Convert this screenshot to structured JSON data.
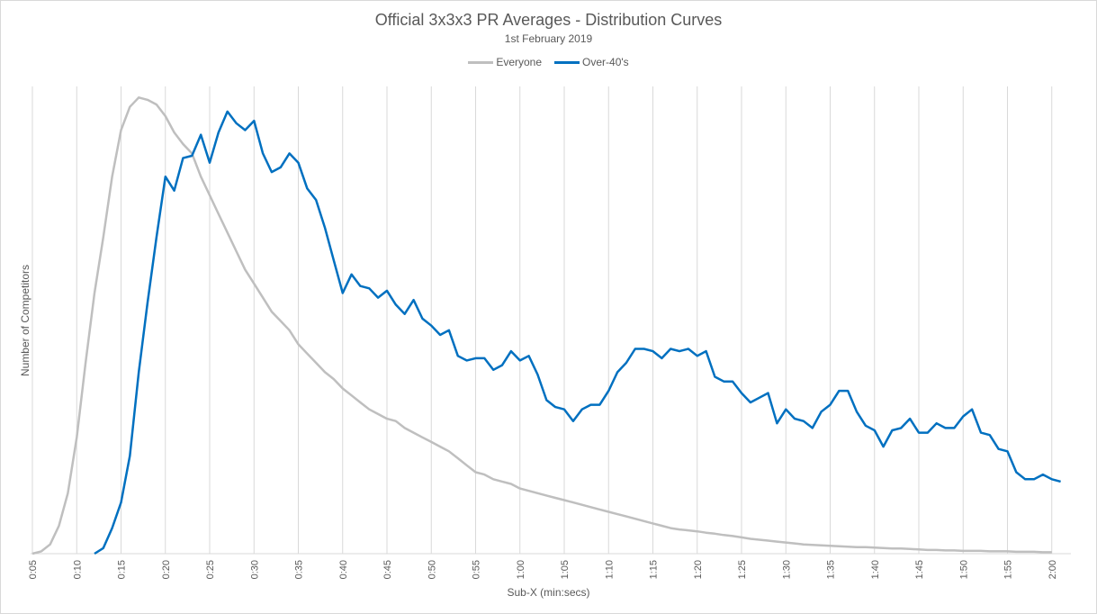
{
  "chart_data": {
    "type": "line",
    "title": "Official 3x3x3 PR Averages - Distribution Curves",
    "subtitle": "1st February 2019",
    "xlabel": "Sub-X (min:secs)",
    "ylabel": "Number  of Competitors",
    "legend_position": "top",
    "grid": {
      "vertical": true,
      "horizontal": false
    },
    "x_unit": "seconds",
    "tick_labels": [
      "0:05",
      "0:10",
      "0:15",
      "0:20",
      "0:25",
      "0:30",
      "0:35",
      "0:40",
      "0:45",
      "0:50",
      "0:55",
      "1:00",
      "1:05",
      "1:10",
      "1:15",
      "1:20",
      "1:25",
      "1:30",
      "1:35",
      "1:40",
      "1:45",
      "1:50",
      "1:55",
      "2:00"
    ],
    "ylim": [
      0,
      100
    ],
    "series": [
      {
        "name": "Everyone",
        "color": "#bfbfbf",
        "x_start": 5,
        "values": [
          0,
          0.5,
          2,
          6,
          13,
          25,
          41,
          56,
          68,
          81,
          91,
          96,
          98,
          97.5,
          96.5,
          94,
          90.5,
          88,
          86,
          81,
          77,
          73,
          69,
          65,
          61,
          58,
          55,
          52,
          50,
          48,
          45,
          43,
          41,
          39,
          37.5,
          35.5,
          34,
          32.5,
          31,
          30,
          29,
          28.5,
          27,
          26,
          25,
          24,
          23,
          22,
          20.5,
          19,
          17.5,
          17,
          16,
          15.5,
          15,
          14,
          13.5,
          13,
          12.5,
          12,
          11.5,
          11,
          10.5,
          10,
          9.5,
          9,
          8.5,
          8,
          7.5,
          7,
          6.5,
          6,
          5.5,
          5.2,
          5,
          4.8,
          4.5,
          4.3,
          4,
          3.8,
          3.5,
          3.2,
          3,
          2.8,
          2.6,
          2.4,
          2.2,
          2,
          1.9,
          1.8,
          1.7,
          1.6,
          1.5,
          1.4,
          1.4,
          1.3,
          1.2,
          1.1,
          1.1,
          1,
          0.9,
          0.8,
          0.8,
          0.7,
          0.7,
          0.6,
          0.6,
          0.6,
          0.5,
          0.5,
          0.5,
          0.4,
          0.4,
          0.4,
          0.3,
          0.3
        ]
      },
      {
        "name": "Over-40's",
        "color": "#0070c0",
        "x_start": 12,
        "values": [
          0,
          1.2,
          5.5,
          11,
          21,
          39,
          54,
          68,
          81,
          78,
          85,
          85.5,
          90,
          84,
          90.5,
          95,
          92.5,
          91,
          93,
          86,
          82,
          83,
          86,
          84,
          78.5,
          76,
          70,
          63,
          56,
          60,
          57.5,
          57,
          55,
          56.5,
          53.5,
          51.5,
          54.5,
          50.5,
          49,
          47,
          48,
          42.5,
          41.5,
          42,
          42,
          39.5,
          40.5,
          43.5,
          41.5,
          42.5,
          38.5,
          33,
          31.5,
          31,
          28.5,
          31,
          32,
          32,
          35,
          39,
          41,
          44,
          44,
          43.5,
          42,
          44,
          43.5,
          44,
          42.5,
          43.5,
          38,
          37,
          37,
          34.5,
          32.5,
          33.5,
          34.5,
          28,
          31,
          29,
          28.5,
          27,
          30.5,
          32,
          35,
          35,
          30.5,
          27.5,
          26.5,
          23,
          26.5,
          27,
          29,
          26,
          26,
          28,
          27,
          27,
          29.5,
          31,
          26,
          25.5,
          22.5,
          22,
          17.5,
          16,
          16,
          17,
          16,
          15.5
        ]
      }
    ]
  }
}
